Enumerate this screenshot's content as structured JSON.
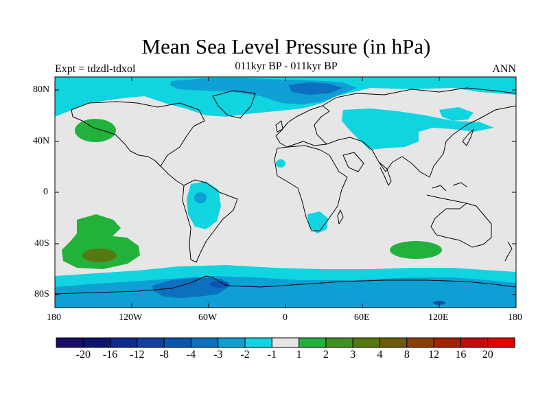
{
  "title": "Mean Sea Level Pressure (in hPa)",
  "subtitle": "011kyr BP - 011kyr BP",
  "left_string": "Expt = tdzdl-tdxol",
  "right_string": "ANN",
  "map": {
    "projection": "cylindrical-equidistant",
    "lon_range": [
      -180,
      180
    ],
    "lat_range": [
      -90,
      90
    ],
    "lat_tick_labels": [
      "80N",
      "40N",
      "0",
      "40S",
      "80S"
    ],
    "lon_tick_labels": [
      "180",
      "120W",
      "60W",
      "0",
      "60E",
      "120E",
      "180"
    ],
    "background_color": "#e6e6e6",
    "coastline_color": "#000000"
  },
  "colorbar": {
    "labels": [
      "-20",
      "-16",
      "-12",
      "-8",
      "-4",
      "-3",
      "-2",
      "-1",
      "1",
      "2",
      "3",
      "4",
      "8",
      "12",
      "16",
      "20"
    ],
    "colors": [
      "#1a0f66",
      "#0d1470",
      "#0f2a8f",
      "#1340a0",
      "#0a55b0",
      "#0c6fc0",
      "#0ea0d4",
      "#10d4e0",
      "#e6e6e6",
      "#22b23c",
      "#3f9222",
      "#557810",
      "#6e5a08",
      "#8a4004",
      "#a32202",
      "#c40a0a",
      "#e00000"
    ]
  }
}
